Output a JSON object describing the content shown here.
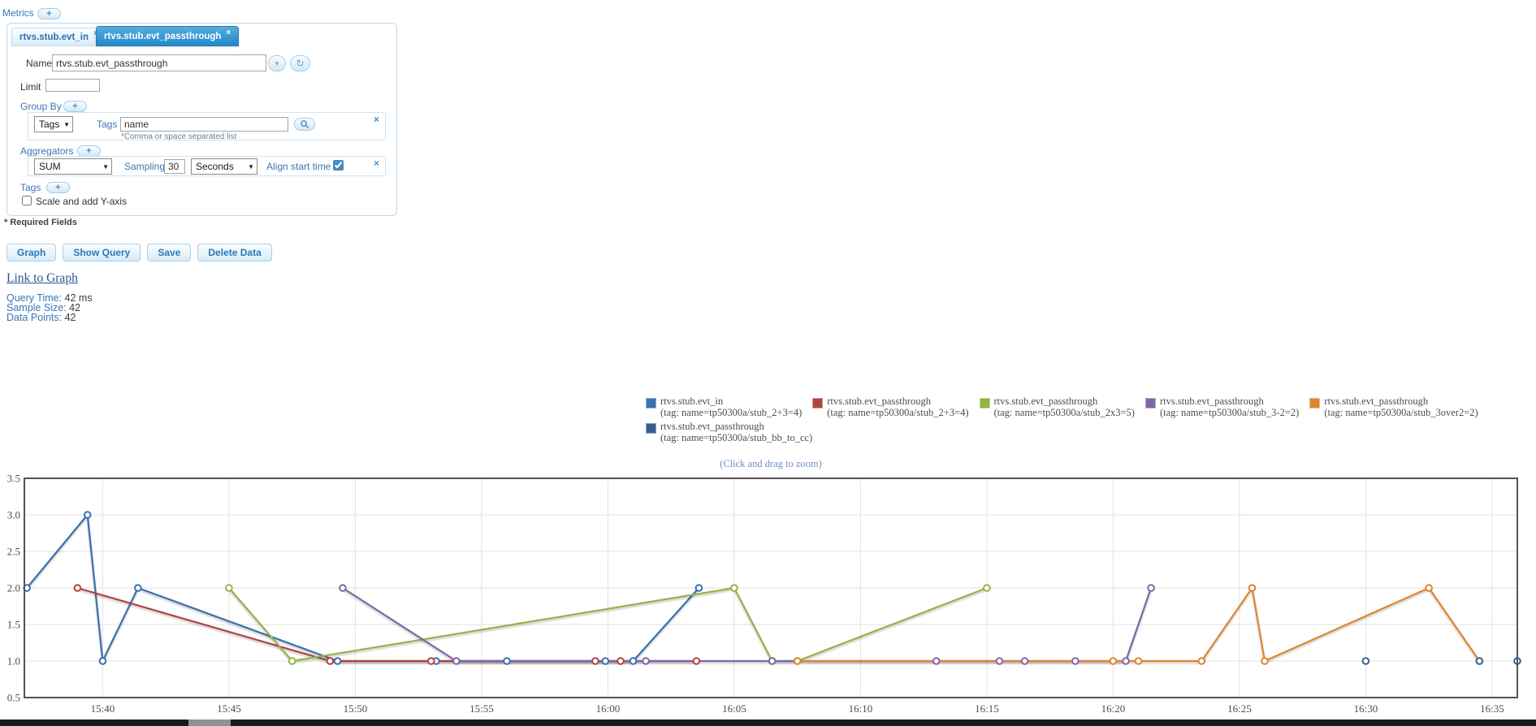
{
  "header": {
    "metrics_label": "Metrics",
    "add_metric_label": "+"
  },
  "tabs": [
    {
      "label": "rtvs.stub.evt_in",
      "close": "×",
      "active": false
    },
    {
      "label": "rtvs.stub.evt_passthrough",
      "close": "×",
      "active": true
    }
  ],
  "form": {
    "name_label": "Name*",
    "name_value": "rtvs.stub.evt_passthrough",
    "limit_label": "Limit",
    "limit_value": "",
    "group_by": {
      "section_label": "Group By",
      "add_label": "+",
      "type_value": "Tags",
      "tags_label": "Tags",
      "tags_value": "name",
      "hint": "*Comma or space separated list",
      "close": "×"
    },
    "aggregators": {
      "section_label": "Aggregators",
      "add_label": "+",
      "fn_value": "SUM",
      "sampling_label": "Sampling",
      "sampling_value": "30",
      "unit_value": "Seconds",
      "align_label": "Align start time",
      "align_checked": true,
      "close": "×"
    },
    "tags_section_label": "Tags",
    "tags_add_label": "+",
    "scale_label": "Scale and add Y-axis",
    "scale_checked": false
  },
  "required_note": "* Required Fields",
  "buttons": [
    {
      "label": "Graph"
    },
    {
      "label": "Show Query"
    },
    {
      "label": "Save"
    },
    {
      "label": "Delete Data"
    }
  ],
  "link_to_graph": "Link to Graph",
  "stats": [
    {
      "label": "Query Time:",
      "value": "42 ms"
    },
    {
      "label": "Sample Size:",
      "value": "42"
    },
    {
      "label": "Data Points:",
      "value": "42"
    }
  ],
  "legend_hint": "(Click and drag to zoom)",
  "chart_data": {
    "type": "line",
    "note": "x values are minutes after 15:00; series values read from gridlines",
    "x_axis": {
      "tick_labels": [
        "15:40",
        "15:45",
        "15:50",
        "15:55",
        "16:00",
        "16:05",
        "16:10",
        "16:15",
        "16:20",
        "16:25",
        "16:30",
        "16:35"
      ],
      "tick_minutes": [
        40,
        45,
        50,
        55,
        60,
        65,
        70,
        75,
        80,
        85,
        90,
        95
      ],
      "range_minutes": [
        36.9,
        96.0
      ]
    },
    "y_axis": {
      "tick_labels": [
        "0.5",
        "1.0",
        "1.5",
        "2.0",
        "2.5",
        "3.0",
        "3.5"
      ],
      "tick_values": [
        0.5,
        1.0,
        1.5,
        2.0,
        2.5,
        3.0,
        3.5
      ],
      "range": [
        0.5,
        3.5
      ]
    },
    "grid": true,
    "legend_position": "above-right",
    "series": [
      {
        "name": "rtvs.stub.evt_in",
        "tag": "(tag: name=tp50300a/stub_2+3=4)",
        "color": "#3b6fae",
        "points": [
          [
            37.0,
            2
          ],
          [
            39.4,
            3
          ],
          [
            40.0,
            1
          ],
          [
            41.4,
            2
          ],
          [
            49.3,
            1
          ],
          [
            53.2,
            1
          ],
          [
            56.0,
            1
          ],
          [
            59.9,
            1
          ],
          [
            61.0,
            1
          ],
          [
            63.6,
            2
          ]
        ]
      },
      {
        "name": "rtvs.stub.evt_passthrough",
        "tag": "(tag: name=tp50300a/stub_2+3=4)",
        "color": "#b04340",
        "points": [
          [
            39.0,
            2
          ],
          [
            49.0,
            1
          ],
          [
            53.0,
            1
          ],
          [
            59.5,
            1
          ],
          [
            60.5,
            1
          ],
          [
            63.5,
            1
          ]
        ]
      },
      {
        "name": "rtvs.stub.evt_passthrough",
        "tag": "(tag: name=tp50300a/stub_2x3=5)",
        "color": "#93b348",
        "points": [
          [
            45.0,
            2
          ],
          [
            47.5,
            1
          ],
          [
            65.0,
            2
          ],
          [
            66.5,
            1
          ],
          [
            67.5,
            1
          ],
          [
            75.0,
            2
          ]
        ]
      },
      {
        "name": "rtvs.stub.evt_passthrough",
        "tag": "(tag: name=tp50300a/stub_3-2=2)",
        "color": "#8066a4",
        "points": [
          [
            49.5,
            2
          ],
          [
            54.0,
            1
          ],
          [
            61.5,
            1
          ],
          [
            66.5,
            1
          ],
          [
            73.0,
            1
          ],
          [
            75.5,
            1
          ],
          [
            76.5,
            1
          ],
          [
            78.5,
            1
          ],
          [
            80.5,
            1
          ],
          [
            81.5,
            2
          ]
        ]
      },
      {
        "name": "rtvs.stub.evt_passthrough",
        "tag": "(tag: name=tp50300a/stub_3over2=2)",
        "color": "#de8430",
        "points": [
          [
            67.5,
            1
          ],
          [
            80.0,
            1
          ],
          [
            81.0,
            1
          ],
          [
            83.5,
            1
          ],
          [
            85.5,
            2
          ],
          [
            86.0,
            1
          ],
          [
            92.5,
            2
          ],
          [
            94.5,
            1
          ]
        ]
      },
      {
        "name": "rtvs.stub.evt_passthrough",
        "tag": "(tag: name=tp50300a/stub_bb_to_cc)",
        "color": "#34618c",
        "points": [
          [
            90.0,
            1
          ],
          [
            94.5,
            1
          ],
          [
            96.0,
            1
          ]
        ]
      }
    ]
  }
}
